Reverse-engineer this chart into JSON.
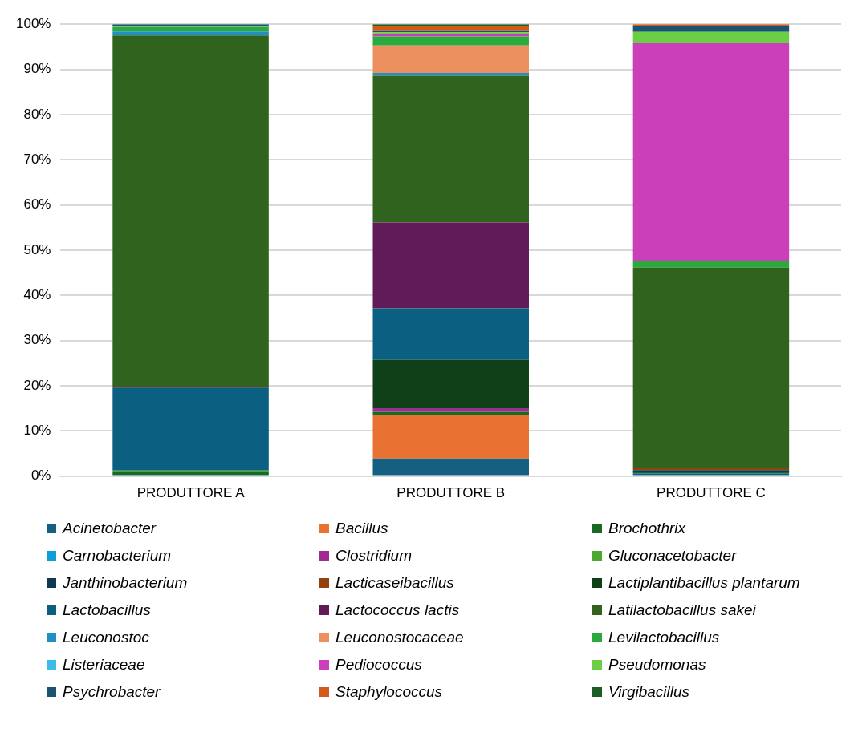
{
  "chart_data": {
    "type": "bar",
    "stacked": true,
    "categories": [
      "PRODUTTORE A",
      "PRODUTTORE B",
      "PRODUTTORE C"
    ],
    "ylim": [
      0,
      100
    ],
    "yticks": [
      {
        "value": 0,
        "label": "0%"
      },
      {
        "value": 10,
        "label": "10%"
      },
      {
        "value": 20,
        "label": "20%"
      },
      {
        "value": 30,
        "label": "30%"
      },
      {
        "value": 40,
        "label": "40%"
      },
      {
        "value": 50,
        "label": "50%"
      },
      {
        "value": 60,
        "label": "60%"
      },
      {
        "value": 70,
        "label": "70%"
      },
      {
        "value": 80,
        "label": "80%"
      },
      {
        "value": 90,
        "label": "90%"
      },
      {
        "value": 100,
        "label": "100%"
      }
    ],
    "grid": "y",
    "legend": "bottom",
    "series": [
      {
        "name": "Acinetobacter",
        "color": "#156082",
        "values": [
          0.3,
          3.9,
          0.6
        ]
      },
      {
        "name": "Bacillus",
        "color": "#e97132",
        "values": [
          null,
          9.7,
          null
        ]
      },
      {
        "name": "Brochothrix",
        "color": "#196b24",
        "values": [
          0.6,
          0.6,
          0.4
        ]
      },
      {
        "name": "Carnobacterium",
        "color": "#0f9ed5",
        "values": [
          null,
          null,
          null
        ]
      },
      {
        "name": "Clostridium",
        "color": "#a02b93",
        "values": [
          null,
          0.8,
          null
        ]
      },
      {
        "name": "Gluconacetobacter",
        "color": "#4ea72e",
        "values": [
          0.3,
          null,
          null
        ]
      },
      {
        "name": "Janthinobacterium",
        "color": "#0d3a4e",
        "values": [
          null,
          null,
          0.3
        ]
      },
      {
        "name": "Lacticaseibacillus",
        "color": "#94400f",
        "values": [
          null,
          null,
          0.5
        ]
      },
      {
        "name": "Lactiplantibacillus plantarum",
        "color": "#0f4018",
        "values": [
          null,
          10.7,
          null
        ]
      },
      {
        "name": "Lactobacillus",
        "color": "#0b5f80",
        "values": [
          18.3,
          11.4,
          null
        ]
      },
      {
        "name": "Lactococcus lactis",
        "color": "#601b58",
        "values": [
          0.3,
          19.0,
          null
        ]
      },
      {
        "name": "Latilactobacillus sakei",
        "color": "#2f631e",
        "values": [
          77.7,
          32.5,
          44.3
        ]
      },
      {
        "name": "Leuconostoc",
        "color": "#1f8fc4",
        "values": [
          0.9,
          0.6,
          null
        ]
      },
      {
        "name": "Leuconostocaceae",
        "color": "#ed9060",
        "values": [
          null,
          6.1,
          null
        ]
      },
      {
        "name": "Levilactobacillus",
        "color": "#2aaa3c",
        "values": [
          1.0,
          2.0,
          1.4
        ]
      },
      {
        "name": "Listeriaceae",
        "color": "#3fbbea",
        "values": [
          null,
          null,
          null
        ]
      },
      {
        "name": "Pediococcus",
        "color": "#cc3fba",
        "values": [
          null,
          0.5,
          48.3
        ]
      },
      {
        "name": "Pseudomonas",
        "color": "#6bcf45",
        "values": [
          0.2,
          0.4,
          2.5
        ]
      },
      {
        "name": "Psychrobacter",
        "color": "#1a5472",
        "values": [
          0.4,
          0.3,
          1.2
        ]
      },
      {
        "name": "Staphylococcus",
        "color": "#d45a1a",
        "values": [
          null,
          1.0,
          0.5
        ]
      },
      {
        "name": "Virgibacillus",
        "color": "#1b5e26",
        "values": [
          null,
          0.5,
          null
        ]
      }
    ]
  }
}
